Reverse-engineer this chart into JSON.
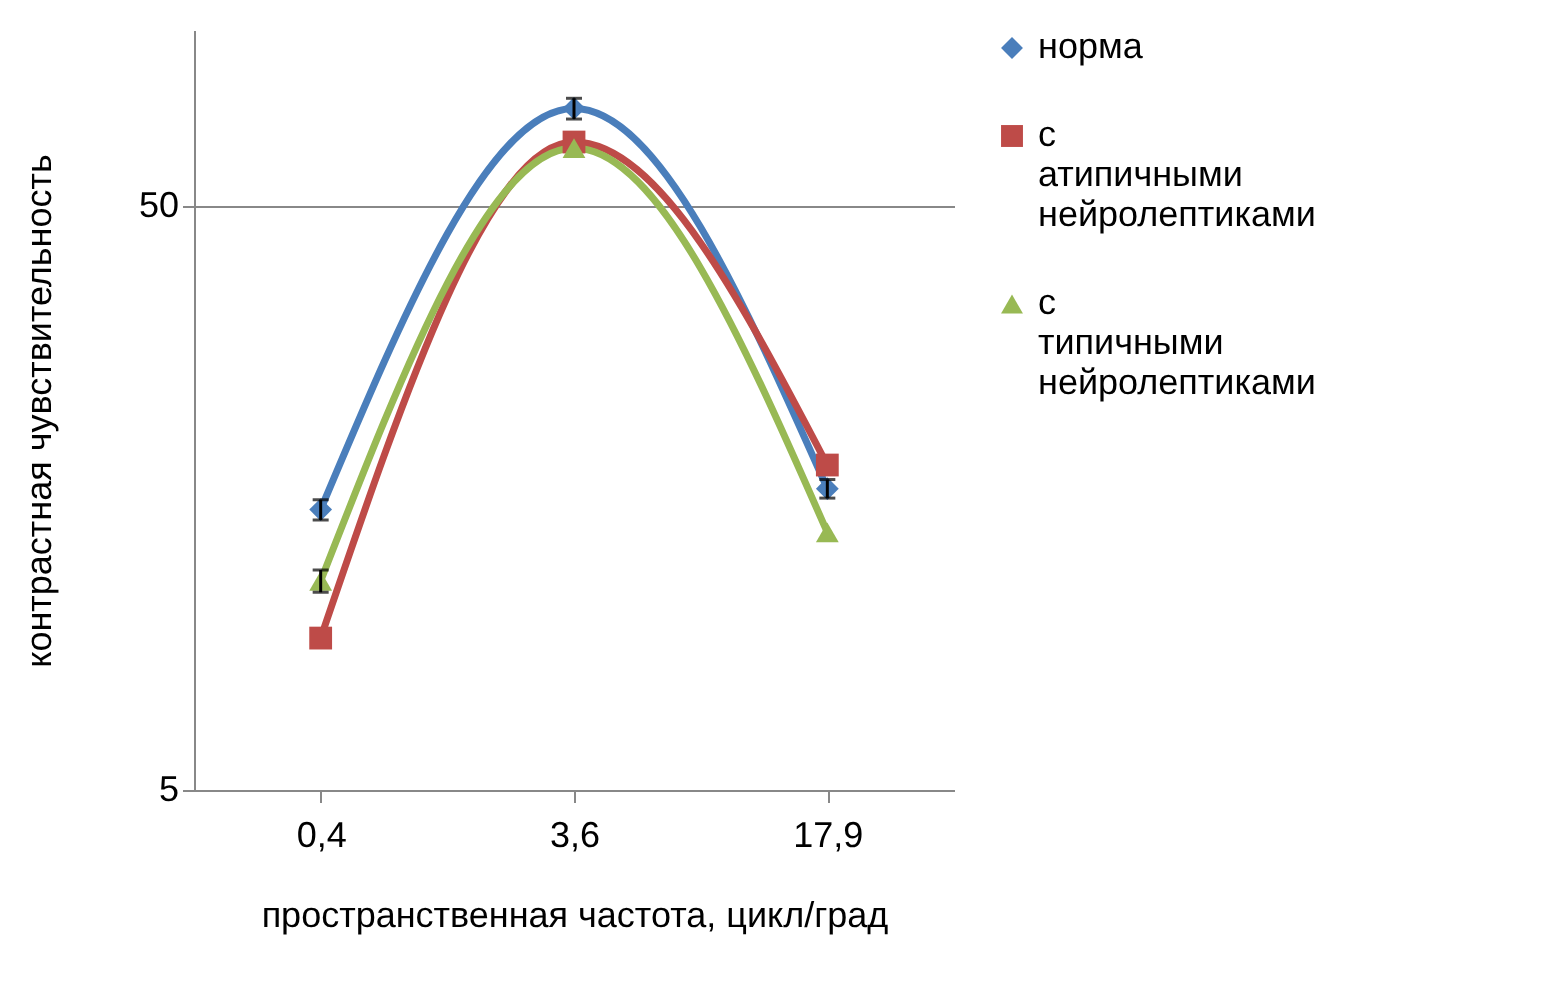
{
  "chart_data": {
    "type": "line",
    "xlabel": "пространственная частота, цикл/град",
    "ylabel": "контрастная чувствительность",
    "categories": [
      "0,4",
      "3,6",
      "17,9"
    ],
    "series": [
      {
        "name": "норма",
        "color": "#4a7ebb",
        "marker": "diamond",
        "values": [
          15.1,
          73.4,
          16.4
        ],
        "errors": [
          0.6,
          3,
          0.6
        ]
      },
      {
        "name": "с атипичными нейролептиками",
        "color": "#be4b48",
        "marker": "square",
        "values": [
          9.1,
          64.3,
          18.0
        ]
      },
      {
        "name": "с типичными нейролептиками",
        "color": "#98b954",
        "marker": "triangle",
        "values": [
          11.4,
          62.8,
          13.8
        ],
        "errors": [
          0.5,
          null,
          null
        ]
      }
    ],
    "log": true,
    "ylim": [
      5,
      100
    ],
    "yticks": [
      5,
      50
    ],
    "grid": "y",
    "legend": "right",
    "line_style": "solid"
  }
}
